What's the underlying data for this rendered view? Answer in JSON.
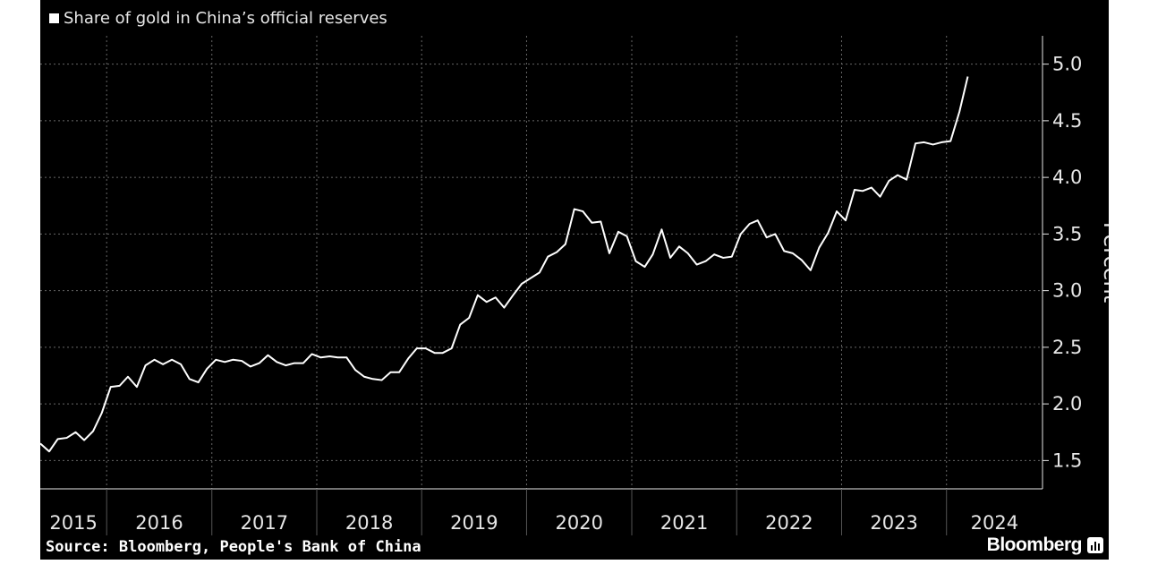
{
  "legend": {
    "label": "Share of gold in China’s official reserves",
    "color": "#ffffff"
  },
  "footer": {
    "source": "Source: Bloomberg, People's Bank of China",
    "brand": "Bloomberg",
    "brand_icon": "bloomberg-terminal-icon"
  },
  "colors": {
    "background": "#000000",
    "line": "#ffffff",
    "grid": "#666666",
    "text": "#e6e6e6"
  },
  "chart_data": {
    "type": "line",
    "title": "",
    "xlabel": "",
    "ylabel": "Percent",
    "y_axis_position": "right",
    "ylim": [
      1.25,
      5.25
    ],
    "yticks": [
      1.5,
      2.0,
      2.5,
      3.0,
      3.5,
      4.0,
      4.5,
      5.0
    ],
    "ytick_labels": [
      "1.5",
      "2.0",
      "2.5",
      "3.0",
      "3.5",
      "4.0",
      "4.5",
      "5.0"
    ],
    "xlim": [
      "2015-05-15",
      "2024-11-30"
    ],
    "x_tick_labels": [
      "2015",
      "2016",
      "2017",
      "2018",
      "2019",
      "2020",
      "2021",
      "2022",
      "2023",
      "2024"
    ],
    "grid": true,
    "series": [
      {
        "name": "Share of gold in China’s official reserves",
        "color": "#ffffff",
        "points": [
          [
            "2015-05",
            1.65
          ],
          [
            "2015-06",
            1.58
          ],
          [
            "2015-07",
            1.69
          ],
          [
            "2015-08",
            1.7
          ],
          [
            "2015-09",
            1.75
          ],
          [
            "2015-10",
            1.68
          ],
          [
            "2015-11",
            1.76
          ],
          [
            "2015-12",
            1.92
          ],
          [
            "2016-01",
            2.15
          ],
          [
            "2016-02",
            2.16
          ],
          [
            "2016-03",
            2.24
          ],
          [
            "2016-04",
            2.15
          ],
          [
            "2016-05",
            2.34
          ],
          [
            "2016-06",
            2.39
          ],
          [
            "2016-07",
            2.35
          ],
          [
            "2016-08",
            2.39
          ],
          [
            "2016-09",
            2.35
          ],
          [
            "2016-10",
            2.22
          ],
          [
            "2016-11",
            2.19
          ],
          [
            "2016-12",
            2.31
          ],
          [
            "2017-01",
            2.39
          ],
          [
            "2017-02",
            2.37
          ],
          [
            "2017-03",
            2.39
          ],
          [
            "2017-04",
            2.38
          ],
          [
            "2017-05",
            2.33
          ],
          [
            "2017-06",
            2.36
          ],
          [
            "2017-07",
            2.43
          ],
          [
            "2017-08",
            2.37
          ],
          [
            "2017-09",
            2.34
          ],
          [
            "2017-10",
            2.36
          ],
          [
            "2017-11",
            2.36
          ],
          [
            "2017-12",
            2.44
          ],
          [
            "2018-01",
            2.41
          ],
          [
            "2018-02",
            2.42
          ],
          [
            "2018-03",
            2.41
          ],
          [
            "2018-04",
            2.41
          ],
          [
            "2018-05",
            2.3
          ],
          [
            "2018-06",
            2.24
          ],
          [
            "2018-07",
            2.22
          ],
          [
            "2018-08",
            2.21
          ],
          [
            "2018-09",
            2.28
          ],
          [
            "2018-10",
            2.28
          ],
          [
            "2018-11",
            2.4
          ],
          [
            "2018-12",
            2.49
          ],
          [
            "2019-01",
            2.49
          ],
          [
            "2019-02",
            2.45
          ],
          [
            "2019-03",
            2.45
          ],
          [
            "2019-04",
            2.49
          ],
          [
            "2019-05",
            2.7
          ],
          [
            "2019-06",
            2.76
          ],
          [
            "2019-07",
            2.96
          ],
          [
            "2019-08",
            2.9
          ],
          [
            "2019-09",
            2.94
          ],
          [
            "2019-10",
            2.85
          ],
          [
            "2019-11",
            2.96
          ],
          [
            "2019-12",
            3.06
          ],
          [
            "2020-01",
            3.11
          ],
          [
            "2020-02",
            3.16
          ],
          [
            "2020-03",
            3.3
          ],
          [
            "2020-04",
            3.34
          ],
          [
            "2020-05",
            3.41
          ],
          [
            "2020-06",
            3.72
          ],
          [
            "2020-07",
            3.7
          ],
          [
            "2020-08",
            3.6
          ],
          [
            "2020-09",
            3.61
          ],
          [
            "2020-10",
            3.33
          ],
          [
            "2020-11",
            3.52
          ],
          [
            "2020-12",
            3.48
          ],
          [
            "2021-01",
            3.26
          ],
          [
            "2021-02",
            3.21
          ],
          [
            "2021-03",
            3.32
          ],
          [
            "2021-04",
            3.54
          ],
          [
            "2021-05",
            3.29
          ],
          [
            "2021-06",
            3.39
          ],
          [
            "2021-07",
            3.33
          ],
          [
            "2021-08",
            3.23
          ],
          [
            "2021-09",
            3.26
          ],
          [
            "2021-10",
            3.32
          ],
          [
            "2021-11",
            3.29
          ],
          [
            "2021-12",
            3.3
          ],
          [
            "2022-01",
            3.5
          ],
          [
            "2022-02",
            3.59
          ],
          [
            "2022-03",
            3.62
          ],
          [
            "2022-04",
            3.47
          ],
          [
            "2022-05",
            3.5
          ],
          [
            "2022-06",
            3.35
          ],
          [
            "2022-07",
            3.33
          ],
          [
            "2022-08",
            3.27
          ],
          [
            "2022-09",
            3.18
          ],
          [
            "2022-10",
            3.38
          ],
          [
            "2022-11",
            3.51
          ],
          [
            "2022-12",
            3.7
          ],
          [
            "2023-01",
            3.62
          ],
          [
            "2023-02",
            3.89
          ],
          [
            "2023-03",
            3.88
          ],
          [
            "2023-04",
            3.91
          ],
          [
            "2023-05",
            3.83
          ],
          [
            "2023-06",
            3.97
          ],
          [
            "2023-07",
            4.02
          ],
          [
            "2023-08",
            3.98
          ],
          [
            "2023-09",
            4.3
          ],
          [
            "2023-10",
            4.31
          ],
          [
            "2023-11",
            4.29
          ],
          [
            "2023-12",
            4.31
          ],
          [
            "2024-01",
            4.32
          ],
          [
            "2024-02",
            4.58
          ],
          [
            "2024-03",
            4.89
          ]
        ]
      }
    ]
  }
}
